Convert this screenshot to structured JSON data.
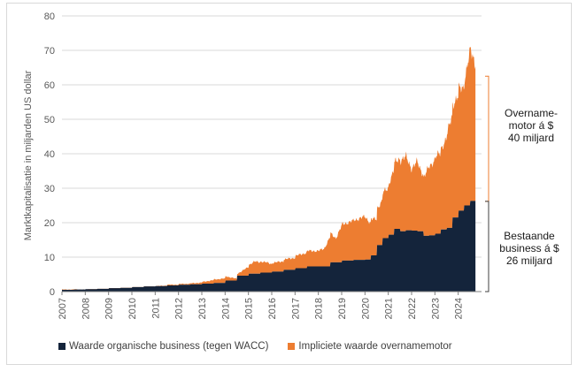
{
  "chart_data": {
    "type": "area",
    "ylabel": "Marktkapitalisatie in miljarden US dollar",
    "ylim": [
      0,
      80
    ],
    "yticks": [
      0,
      10,
      20,
      30,
      40,
      50,
      60,
      70,
      80
    ],
    "xlim": [
      2007,
      2025
    ],
    "xticks": [
      "2007",
      "2008",
      "2009",
      "2010",
      "2011",
      "2012",
      "2013",
      "2014",
      "2015",
      "2016",
      "2017",
      "2018",
      "2019",
      "2020",
      "2021",
      "2022",
      "2023",
      "2024"
    ],
    "grid": true,
    "legend_position": "bottom",
    "colors": {
      "organic": "#14243b",
      "implied": "#ed7d31",
      "grid": "#d9d9d9",
      "axis": "#7f7f7f"
    },
    "series": [
      {
        "name": "Waarde organische business (tegen WACC)",
        "x": [
          2007.0,
          2007.5,
          2008.0,
          2008.5,
          2009.0,
          2009.5,
          2010.0,
          2010.5,
          2011.0,
          2011.5,
          2012.0,
          2012.5,
          2013.0,
          2013.5,
          2014.0,
          2014.5,
          2015.0,
          2015.5,
          2016.0,
          2016.5,
          2017.0,
          2017.5,
          2018.0,
          2018.5,
          2019.0,
          2019.5,
          2020.0,
          2020.25,
          2020.5,
          2020.75,
          2021.0,
          2021.25,
          2021.5,
          2021.75,
          2022.0,
          2022.25,
          2022.5,
          2022.75,
          2023.0,
          2023.25,
          2023.5,
          2023.75,
          2024.0,
          2024.25,
          2024.5,
          2024.75
        ],
        "values": [
          0.5,
          0.6,
          0.7,
          0.8,
          1.0,
          1.1,
          1.3,
          1.5,
          1.6,
          1.8,
          2.0,
          2.1,
          2.3,
          2.5,
          3.2,
          4.6,
          5.2,
          5.5,
          5.8,
          6.3,
          6.8,
          7.3,
          7.3,
          8.5,
          9.0,
          9.2,
          9.3,
          10.5,
          13.5,
          15.5,
          16.5,
          18.2,
          17.5,
          17.8,
          17.7,
          17.5,
          16.2,
          16.3,
          16.8,
          18.0,
          18.5,
          21.5,
          23.5,
          25.0,
          26.3,
          26.2
        ]
      },
      {
        "name": "Impliciete waarde overnamemotor",
        "x": [
          2007.0,
          2007.5,
          2008.0,
          2008.5,
          2009.0,
          2009.5,
          2010.0,
          2010.5,
          2011.0,
          2011.5,
          2012.0,
          2012.5,
          2013.0,
          2013.5,
          2014.0,
          2014.5,
          2015.0,
          2015.25,
          2015.5,
          2015.75,
          2016.0,
          2016.5,
          2017.0,
          2017.5,
          2018.0,
          2018.25,
          2018.5,
          2018.75,
          2019.0,
          2019.5,
          2020.0,
          2020.25,
          2020.5,
          2020.75,
          2021.0,
          2021.25,
          2021.5,
          2021.75,
          2022.0,
          2022.25,
          2022.5,
          2022.75,
          2023.0,
          2023.25,
          2023.5,
          2023.75,
          2024.0,
          2024.25,
          2024.5,
          2024.75
        ],
        "values": [
          0.1,
          0.1,
          0.0,
          -0.2,
          -0.4,
          -0.3,
          -0.2,
          -0.4,
          0.0,
          0.2,
          0.2,
          0.3,
          0.5,
          1.0,
          1.3,
          0.5,
          2.5,
          3.5,
          3.3,
          3.0,
          2.5,
          3.0,
          3.5,
          4.5,
          4.5,
          5.2,
          8.5,
          7.0,
          10.5,
          11.5,
          12.5,
          10.5,
          10.5,
          13.0,
          14.5,
          19.0,
          20.5,
          21.5,
          18.0,
          20.0,
          16.5,
          20.0,
          22.0,
          23.5,
          26.5,
          33.0,
          35.0,
          36.0,
          44.0,
          40.0
        ]
      }
    ],
    "annotations": [
      {
        "text_lines": [
          "Overname-",
          "motor á $",
          "40 miljard"
        ]
      },
      {
        "text_lines": [
          "Bestaande",
          "business á $",
          "26 miljard"
        ]
      }
    ]
  }
}
